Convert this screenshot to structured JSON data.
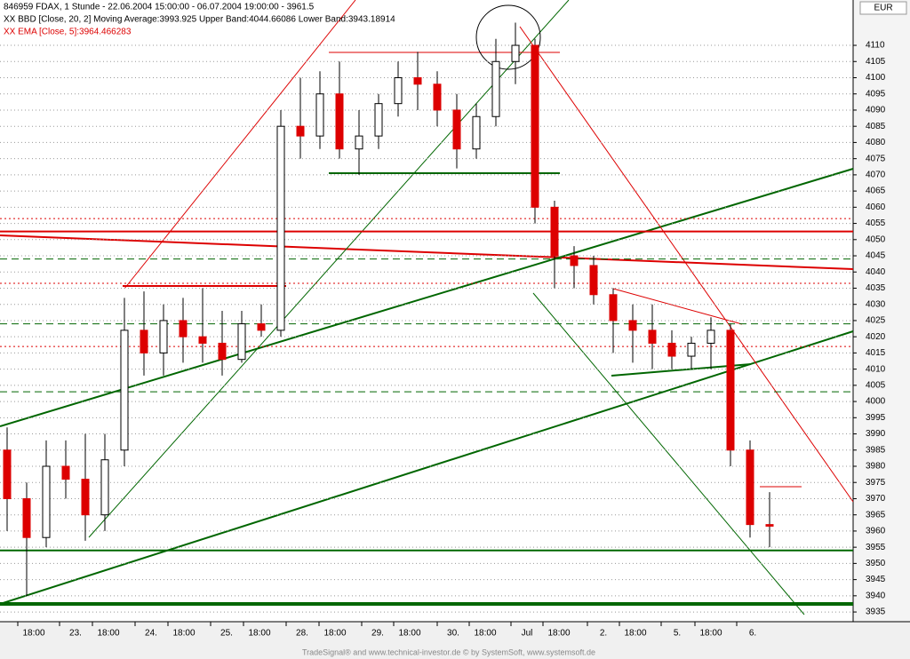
{
  "chart_data": {
    "type": "candlestick",
    "title": "846959  FDAX, 1 Stunde - 22.06.2004 15:00:00 - 06.07.2004 19:00:00 - 3961.5",
    "indicators": [
      "XX BBD [Close, 20, 2] Moving Average:3993.925 Upper Band:4044.66086 Lower Band:3943.18914",
      "XX EMA [Close, 5]:3964.466283"
    ],
    "currency": "EUR",
    "footer": "TradeSignal® and www.technical-investor.de © by SystemSoft, www.systemsoft.de",
    "x_labels": [
      "18:00",
      "23.",
      "18:00",
      "24.",
      "18:00",
      "25.",
      "18:00",
      "28.",
      "18:00",
      "29.",
      "18:00",
      "30.",
      "18:00",
      "Jul",
      "18:00",
      "2.",
      "18:00",
      "5.",
      "18:00",
      "6."
    ],
    "open": [
      3985,
      3970,
      3958,
      3980,
      3976,
      3965,
      3985,
      4022,
      4015,
      4025,
      4020,
      4018,
      4013,
      4024,
      4022,
      4085,
      4082,
      4095,
      4078,
      4082,
      4092,
      4100,
      4098,
      4090,
      4078,
      4088,
      4105,
      4110,
      4060,
      4045,
      4042,
      4033,
      4025,
      4022,
      4018,
      4014,
      4018,
      4022,
      3985,
      3962
    ],
    "high": [
      3992,
      3975,
      3988,
      3988,
      3990,
      3990,
      4032,
      4034,
      4030,
      4032,
      4035,
      4028,
      4028,
      4030,
      4090,
      4100,
      4102,
      4105,
      4090,
      4095,
      4105,
      4108,
      4102,
      4095,
      4092,
      4112,
      4117,
      4112,
      4062,
      4048,
      4045,
      4035,
      4030,
      4030,
      4022,
      4020,
      4026,
      4024,
      3988,
      3972
    ],
    "low": [
      3960,
      3940,
      3955,
      3970,
      3957,
      3960,
      3980,
      4008,
      4008,
      4012,
      4012,
      4008,
      4012,
      4020,
      4020,
      4075,
      4078,
      4075,
      4070,
      4078,
      4088,
      4090,
      4085,
      4072,
      4075,
      4085,
      4098,
      4055,
      4035,
      4035,
      4030,
      4015,
      4012,
      4010,
      4010,
      4010,
      4010,
      3980,
      3958,
      3955
    ],
    "close": [
      3970,
      3958,
      3980,
      3976,
      3965,
      3982,
      4022,
      4015,
      4025,
      4020,
      4018,
      4013,
      4024,
      4022,
      4085,
      4082,
      4095,
      4078,
      4082,
      4092,
      4100,
      4098,
      4090,
      4078,
      4088,
      4105,
      4110,
      4060,
      4045,
      4042,
      4033,
      4025,
      4022,
      4018,
      4014,
      4018,
      4022,
      3985,
      3962,
      3961.5
    ],
    "up_color": "#ffffff",
    "down_color": "#dd0000",
    "levels": [
      {
        "value": 4052.5,
        "color": "#dd0000",
        "style": "solid"
      },
      {
        "value": 4056.5,
        "color": "#dd0000",
        "style": "dotted"
      },
      {
        "value": 4036.5,
        "color": "#dd0000",
        "style": "dotted"
      },
      {
        "value": 4017,
        "color": "#dd0000",
        "style": "dotted"
      },
      {
        "value": 4044,
        "color": "#006600",
        "style": "dashed"
      },
      {
        "value": 4024,
        "color": "#006600",
        "style": "dashed"
      },
      {
        "value": 4003,
        "color": "#006600",
        "style": "dashed"
      },
      {
        "value": 3954,
        "color": "#006600",
        "style": "solid"
      },
      {
        "value": 3937.5,
        "color": "#006600",
        "style": "thick"
      }
    ],
    "ylim": [
      3932,
      4124
    ],
    "yticks": [
      3935,
      3940,
      3945,
      3950,
      3955,
      3960,
      3965,
      3970,
      3975,
      3980,
      3985,
      3990,
      3995,
      4000,
      4005,
      4010,
      4015,
      4020,
      4025,
      4030,
      4035,
      4040,
      4045,
      4050,
      4055,
      4060,
      4065,
      4070,
      4075,
      4080,
      4085,
      4090,
      4095,
      4100,
      4105,
      4110
    ],
    "grid": true
  }
}
